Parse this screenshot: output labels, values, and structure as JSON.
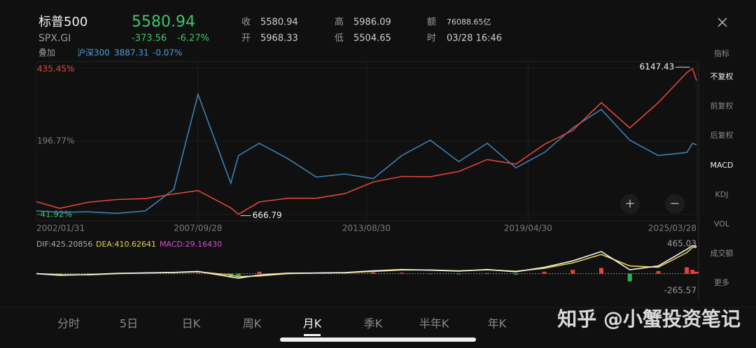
{
  "header": {
    "name": "标普500",
    "code": "SPX.GI",
    "price": "5580.94",
    "change": "-373.56",
    "change_pct": "-6.27%",
    "stats": [
      {
        "label": "收",
        "value": "5580.94"
      },
      {
        "label": "开",
        "value": "5968.33"
      },
      {
        "label": "高",
        "value": "5986.09"
      },
      {
        "label": "低",
        "value": "5504.65"
      },
      {
        "label": "额",
        "value": "76088.65亿"
      },
      {
        "label": "时",
        "value": "03/28 16:46"
      }
    ]
  },
  "overlay": {
    "label": "叠加",
    "name": "沪深300",
    "price": "3887.31",
    "change_pct": "-0.07%"
  },
  "side_menu": [
    "指标",
    "不复权",
    "前复权",
    "后复权",
    "MACD",
    "KDJ",
    "VOL",
    "成交额",
    "更多"
  ],
  "tabs": [
    "分时",
    "5日",
    "日K",
    "周K",
    "月K",
    "季K",
    "半年K",
    "年K"
  ],
  "watermark": "知乎 @小蟹投资笔记",
  "chart_data": [
    {
      "type": "line",
      "x": [
        2002.08,
        2002.9,
        2003.9,
        2004.9,
        2005.9,
        2006.9,
        2007.75,
        2008.9,
        2009.17,
        2009.9,
        2010.9,
        2011.9,
        2012.9,
        2013.9,
        2014.9,
        2015.9,
        2016.9,
        2017.9,
        2018.9,
        2019.9,
        2020.9,
        2021.9,
        2022.9,
        2023.9,
        2024.9,
        2025.1,
        2025.24
      ],
      "series": [
        {
          "color": "#e0443c",
          "values": [
            0,
            -22,
            -2,
            7,
            10,
            25,
            36,
            -20,
            -41,
            -1,
            11,
            11,
            26,
            64,
            82,
            81,
            98,
            137,
            122,
            186,
            232,
            322,
            240,
            322,
            420,
            433,
            394
          ]
        },
        {
          "color": "#3d7fae",
          "values": [
            -30,
            -35,
            -33,
            -38,
            -30,
            40,
            349,
            60,
            150,
            190,
            140,
            80,
            90,
            75,
            150,
            200,
            130,
            190,
            110,
            160,
            240,
            300,
            200,
            150,
            160,
            190,
            185
          ]
        }
      ],
      "xlim": [
        2002.08,
        2025.24
      ],
      "xticks": [
        {
          "value": 2002.08,
          "label": "2002/01/31"
        },
        {
          "value": 2007.75,
          "label": "2007/09/28"
        },
        {
          "value": 2013.66,
          "label": "2013/08/30"
        },
        {
          "value": 2019.33,
          "label": "2019/04/30"
        },
        {
          "value": 2025.24,
          "label": "2025/03/28"
        }
      ],
      "ylim": [
        -41.92,
        435.45
      ],
      "yticks": [
        {
          "value": 435.45,
          "label": "435.45%"
        },
        {
          "value": 196.77,
          "label": "196.77%"
        },
        {
          "value": -41.92,
          "label": "-41.92%"
        }
      ],
      "annotations": {
        "high": "6147.43",
        "low": "666.79"
      }
    },
    {
      "type": "macd",
      "legend": [
        "DIF:425.20856",
        "DEA:410.62641",
        "MACD:29.16430"
      ],
      "x": [
        2002.08,
        2002.9,
        2003.9,
        2004.9,
        2005.9,
        2006.9,
        2007.75,
        2008.9,
        2009.17,
        2009.9,
        2010.9,
        2011.9,
        2012.9,
        2013.9,
        2014.9,
        2015.9,
        2016.9,
        2017.9,
        2018.9,
        2019.9,
        2020.9,
        2021.9,
        2022.9,
        2023.9,
        2024.9,
        2025.1,
        2025.24
      ],
      "series": [
        {
          "color": "#f2f2f2",
          "values": [
            0,
            -25,
            -15,
            5,
            12,
            20,
            35,
            -50,
            -70,
            -20,
            8,
            10,
            18,
            45,
            65,
            55,
            40,
            65,
            30,
            100,
            200,
            345,
            60,
            120,
            380,
            440,
            425.20856
          ]
        },
        {
          "color": "#e8d44a",
          "values": [
            0,
            -15,
            -18,
            0,
            10,
            18,
            30,
            -20,
            -45,
            -35,
            0,
            10,
            15,
            35,
            58,
            58,
            45,
            60,
            38,
            85,
            170,
            300,
            120,
            100,
            330,
            410,
            410.62641
          ]
        },
        {
          "color": "#e0443c",
          "values": [
            0,
            -20,
            6,
            10,
            4,
            4,
            10,
            -60,
            -50,
            30,
            16,
            0,
            6,
            20,
            14,
            -6,
            -10,
            10,
            -16,
            30,
            60,
            90,
            -120,
            40,
            100,
            60,
            29.1643
          ]
        }
      ],
      "xlim": [
        2002.08,
        2025.24
      ],
      "ylim": [
        -265.57,
        465.03
      ],
      "yticks": [
        465.03,
        -265.57
      ]
    }
  ]
}
